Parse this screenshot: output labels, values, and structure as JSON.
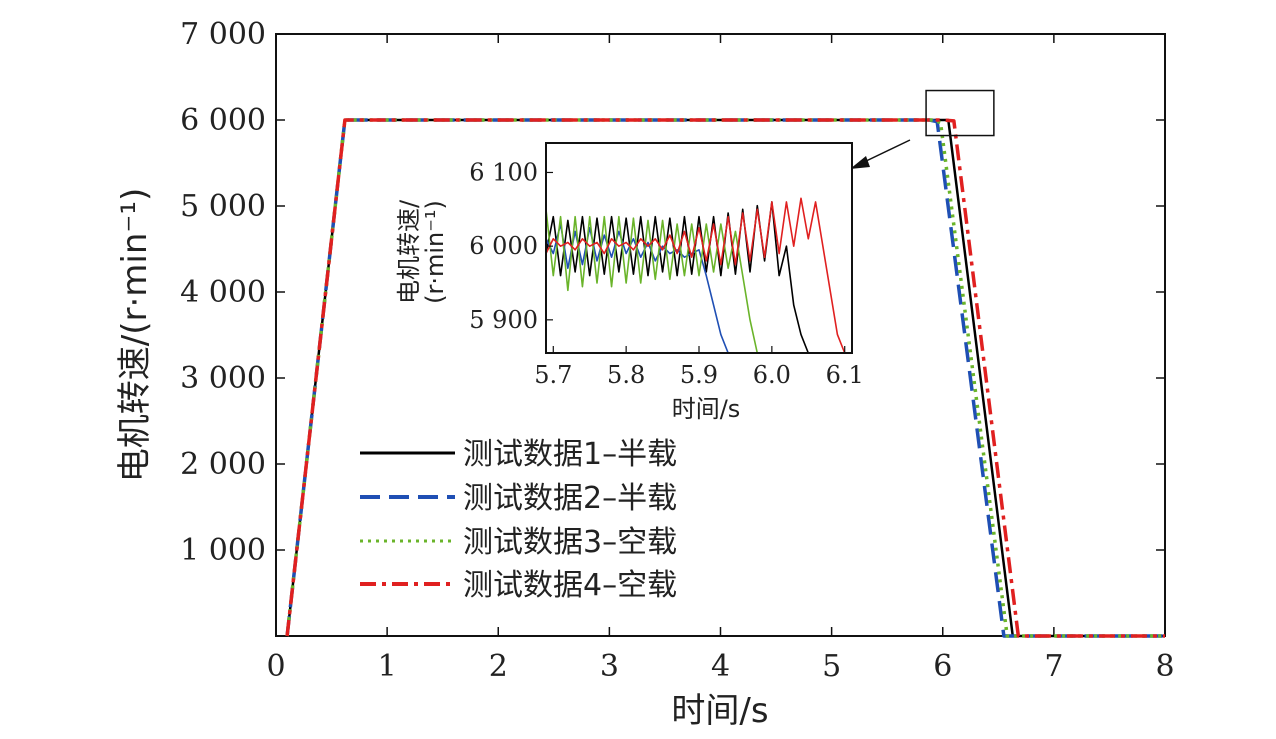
{
  "chart_data": {
    "type": "line",
    "xlabel": "时间/s",
    "ylabel": "电机转速/(r·min⁻¹)",
    "xlim": [
      0,
      8
    ],
    "ylim": [
      0,
      7000
    ],
    "x_ticks": [
      "0",
      "1",
      "2",
      "3",
      "4",
      "5",
      "6",
      "7",
      "8"
    ],
    "y_ticks": [
      "1 000",
      "2 000",
      "3 000",
      "4 000",
      "5 000",
      "6 000",
      "7 000"
    ],
    "grid": false,
    "legend_position": "lower-left-center",
    "series": [
      {
        "name": "测试数据1–半载",
        "color": "#000000",
        "dash": "solid",
        "x": [
          0.1,
          0.62,
          5.92,
          6.05,
          6.63,
          8.0
        ],
        "y": [
          0,
          6000,
          6000,
          6000,
          0,
          0
        ]
      },
      {
        "name": "测试数据2–半载",
        "color": "#1f4fb4",
        "dash": "dashed",
        "x": [
          0.1,
          0.62,
          5.88,
          5.95,
          6.55,
          8.0
        ],
        "y": [
          0,
          6000,
          6000,
          5980,
          0,
          0
        ]
      },
      {
        "name": "测试数据3–空载",
        "color": "#6ab42a",
        "dash": "dotted",
        "x": [
          0.1,
          0.62,
          5.92,
          5.98,
          6.58,
          8.0
        ],
        "y": [
          0,
          6000,
          6000,
          5970,
          0,
          0
        ]
      },
      {
        "name": "测试数据4–空载",
        "color": "#e02020",
        "dash": "dashdot",
        "x": [
          0.1,
          0.62,
          6.0,
          6.1,
          6.68,
          8.0
        ],
        "y": [
          0,
          6000,
          6000,
          5990,
          0,
          0
        ]
      }
    ],
    "inset": {
      "xlabel": "时间/s",
      "ylabel_line1": "电机转速/",
      "ylabel_line2": "(r·min⁻¹)",
      "xlim": [
        5.69,
        6.11
      ],
      "ylim": [
        5855,
        6140
      ],
      "x_ticks": [
        "5.7",
        "5.8",
        "5.9",
        "6.0",
        "6.1"
      ],
      "y_ticks": [
        "5 900",
        "6 000",
        "6 100"
      ],
      "zoom_box_x": [
        5.85,
        6.1
      ],
      "zoom_box_y": [
        5890,
        6110
      ],
      "series": [
        {
          "color": "#000000",
          "x": [
            5.69,
            5.7,
            5.71,
            5.72,
            5.73,
            5.74,
            5.75,
            5.76,
            5.77,
            5.78,
            5.79,
            5.8,
            5.81,
            5.82,
            5.83,
            5.84,
            5.85,
            5.86,
            5.87,
            5.88,
            5.89,
            5.9,
            5.91,
            5.92,
            5.93,
            5.94,
            5.95,
            5.96,
            5.97,
            5.98,
            5.99,
            6.0,
            6.01,
            6.02,
            6.03,
            6.04,
            6.05
          ],
          "y": [
            5990,
            6040,
            5960,
            6035,
            5965,
            6040,
            5960,
            6038,
            5962,
            6040,
            5965,
            6038,
            5962,
            6040,
            5960,
            6040,
            5965,
            6038,
            5960,
            6040,
            5962,
            6040,
            5965,
            6040,
            5960,
            6045,
            5962,
            6050,
            5965,
            6055,
            5980,
            6060,
            5960,
            6000,
            5920,
            5880,
            5855
          ]
        },
        {
          "color": "#1f4fb4",
          "x": [
            5.69,
            5.7,
            5.71,
            5.72,
            5.73,
            5.74,
            5.75,
            5.76,
            5.77,
            5.78,
            5.79,
            5.8,
            5.81,
            5.82,
            5.83,
            5.84,
            5.85,
            5.86,
            5.87,
            5.88,
            5.89,
            5.9,
            5.91,
            5.92,
            5.93,
            5.94
          ],
          "y": [
            6010,
            5990,
            6030,
            5970,
            6020,
            5975,
            6025,
            5980,
            6015,
            5985,
            6020,
            5990,
            6010,
            5985,
            6005,
            5980,
            6000,
            5990,
            5995,
            5985,
            5990,
            5995,
            5960,
            5920,
            5880,
            5855
          ]
        },
        {
          "color": "#6ab42a",
          "x": [
            5.69,
            5.7,
            5.71,
            5.72,
            5.73,
            5.74,
            5.75,
            5.76,
            5.77,
            5.78,
            5.79,
            5.8,
            5.81,
            5.82,
            5.83,
            5.84,
            5.85,
            5.86,
            5.87,
            5.88,
            5.89,
            5.9,
            5.91,
            5.92,
            5.93,
            5.94,
            5.95,
            5.96,
            5.97,
            5.98
          ],
          "y": [
            6050,
            5960,
            6040,
            5940,
            6040,
            5945,
            6040,
            5950,
            6040,
            5945,
            6040,
            5950,
            6038,
            5950,
            6035,
            5955,
            6035,
            5955,
            6030,
            5960,
            6030,
            5960,
            6030,
            5965,
            6030,
            5970,
            6020,
            5960,
            5900,
            5855
          ]
        },
        {
          "color": "#e02020",
          "x": [
            5.69,
            5.7,
            5.71,
            5.72,
            5.73,
            5.74,
            5.75,
            5.76,
            5.77,
            5.78,
            5.79,
            5.8,
            5.81,
            5.82,
            5.83,
            5.84,
            5.85,
            5.86,
            5.87,
            5.88,
            5.89,
            5.9,
            5.91,
            5.92,
            5.93,
            5.94,
            5.95,
            5.96,
            5.97,
            5.98,
            5.99,
            6.0,
            6.01,
            6.02,
            6.03,
            6.04,
            6.05,
            6.06,
            6.07,
            6.08,
            6.09,
            6.1
          ],
          "y": [
            5990,
            6010,
            6000,
            6005,
            5995,
            6010,
            6000,
            6005,
            5990,
            6010,
            6000,
            6005,
            5995,
            6010,
            6000,
            6010,
            5995,
            6015,
            5990,
            6020,
            5985,
            6025,
            5980,
            6030,
            5975,
            6040,
            5975,
            6045,
            5980,
            6050,
            5985,
            6060,
            5990,
            6060,
            6000,
            6065,
            6010,
            6060,
            6000,
            5940,
            5880,
            5855
          ]
        }
      ]
    }
  }
}
